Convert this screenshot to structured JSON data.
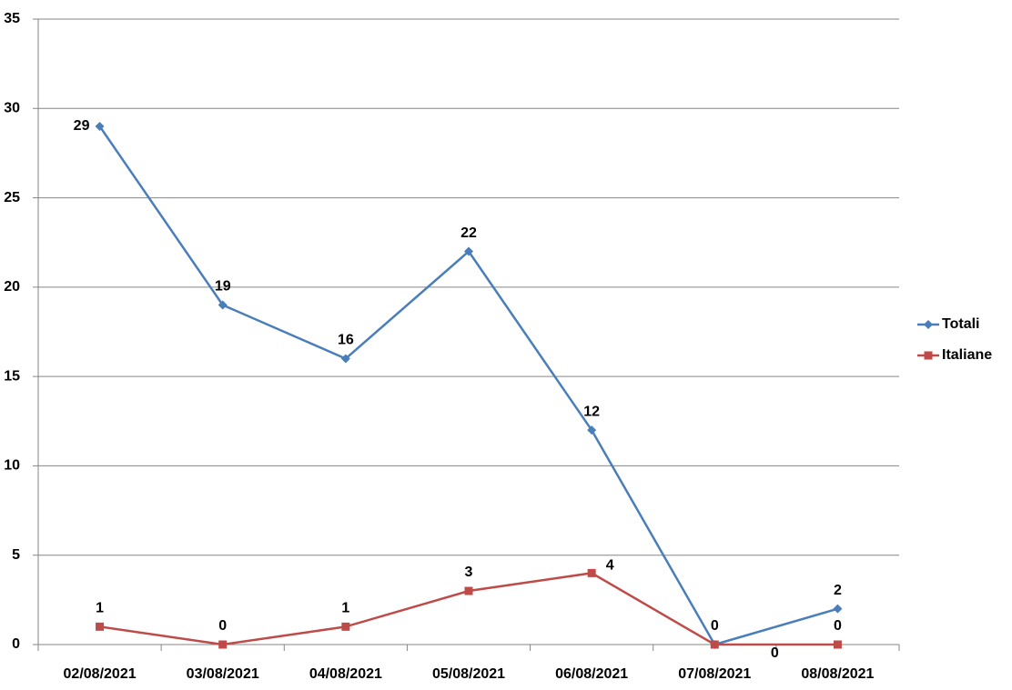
{
  "chart_data": {
    "type": "line",
    "categories": [
      "02/08/2021",
      "03/08/2021",
      "04/08/2021",
      "05/08/2021",
      "06/08/2021",
      "07/08/2021",
      "08/08/2021"
    ],
    "series": [
      {
        "name": "Totali",
        "color": "#4a7ebb",
        "marker": "diamond",
        "values": [
          29,
          19,
          16,
          22,
          12,
          0,
          2
        ]
      },
      {
        "name": "Italiane",
        "color": "#be4b48",
        "marker": "square",
        "values": [
          1,
          0,
          1,
          3,
          4,
          0,
          0
        ]
      }
    ],
    "ylim": [
      0,
      35
    ],
    "yticks": [
      0,
      5,
      10,
      15,
      20,
      25,
      30,
      35
    ],
    "grid": true,
    "legend": "right"
  }
}
